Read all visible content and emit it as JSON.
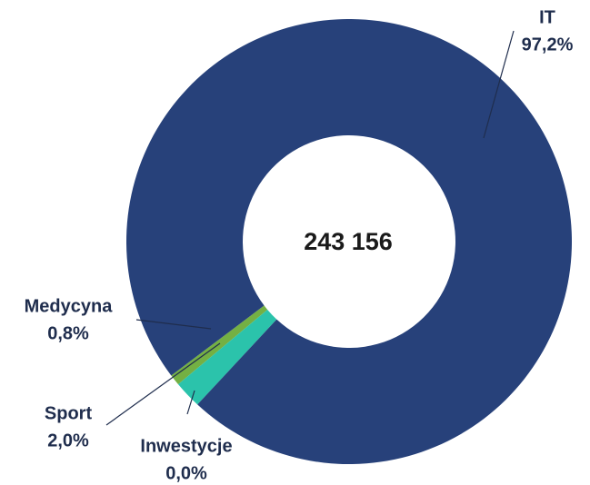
{
  "chart_data": {
    "type": "donut",
    "center_text": "243 156",
    "categories": [
      "IT",
      "Inwestycje",
      "Sport",
      "Medycyna"
    ],
    "values": [
      97.2,
      0.0,
      2.0,
      0.8
    ],
    "value_labels": [
      "97,2%",
      "0,0%",
      "2,0%",
      "0,8%"
    ],
    "colors": [
      "#27417a",
      "#1b7f8c",
      "#2bc3ab",
      "#74b043"
    ]
  }
}
